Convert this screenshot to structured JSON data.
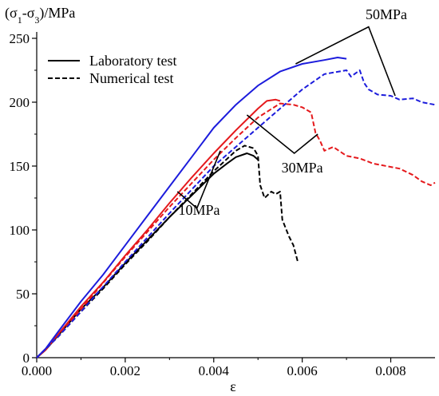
{
  "chart_data": {
    "type": "line",
    "xlabel": "ε",
    "ylabel": "(σ1-σ3)/MPa",
    "xlim": [
      0,
      0.009
    ],
    "ylim": [
      0,
      250
    ],
    "x_ticks": [
      "0.000",
      "0.002",
      "0.004",
      "0.006",
      "0.008"
    ],
    "y_ticks": [
      "0",
      "50",
      "100",
      "150",
      "200",
      "250"
    ],
    "legend": {
      "placement": "top-left",
      "entries": [
        {
          "label": "Laboratory test",
          "style": "solid"
        },
        {
          "label": "Numerical test",
          "style": "dashed"
        }
      ]
    },
    "annotations": [
      {
        "text": "50MPa",
        "x": 0.0079,
        "y": 265,
        "lines": [
          [
            0.00585,
            230
          ],
          [
            0.0075,
            259
          ],
          [
            0.0081,
            205
          ]
        ]
      },
      {
        "text": "30MPa",
        "x": 0.006,
        "y": 145,
        "lines": [
          [
            0.00475,
            190
          ],
          [
            0.00582,
            160
          ],
          [
            0.00635,
            175
          ]
        ]
      },
      {
        "text": "10MPa",
        "x": 0.00367,
        "y": 112,
        "lines": [
          [
            0.00318,
            130
          ],
          [
            0.00362,
            117
          ],
          [
            0.00415,
            162
          ]
        ]
      }
    ],
    "series": [
      {
        "color": "#000000",
        "style": "solid",
        "x": [
          0,
          0.0002,
          0.0005,
          0.001,
          0.0015,
          0.002,
          0.0025,
          0.003,
          0.0035,
          0.004,
          0.0043,
          0.0045,
          0.00475,
          0.0049,
          0.005
        ],
        "y": [
          0,
          6,
          18,
          38,
          55,
          74,
          92,
          110,
          127,
          144,
          152,
          157,
          160,
          158,
          155
        ]
      },
      {
        "color": "#000000",
        "style": "dashed",
        "x": [
          0,
          0.0005,
          0.001,
          0.0015,
          0.002,
          0.0025,
          0.003,
          0.0035,
          0.004,
          0.0045,
          0.0047,
          0.0049,
          0.005,
          0.00505,
          0.00515,
          0.0053,
          0.0054,
          0.0055,
          0.00555,
          0.0057,
          0.0058,
          0.0059
        ],
        "y": [
          0,
          17,
          36,
          54,
          73,
          91,
          110,
          128,
          146,
          162,
          166,
          164,
          158,
          135,
          125,
          130,
          128,
          130,
          108,
          95,
          88,
          75
        ]
      },
      {
        "color": "#e5191c",
        "style": "solid",
        "x": [
          0,
          0.0002,
          0.0005,
          0.001,
          0.0015,
          0.002,
          0.0025,
          0.003,
          0.0035,
          0.004,
          0.0045,
          0.005,
          0.0052,
          0.0054,
          0.0055
        ],
        "y": [
          0,
          6,
          19,
          40,
          59,
          80,
          100,
          121,
          141,
          160,
          178,
          195,
          201,
          202,
          201
        ]
      },
      {
        "color": "#e5191c",
        "style": "dashed",
        "x": [
          0,
          0.0005,
          0.001,
          0.002,
          0.003,
          0.004,
          0.0045,
          0.005,
          0.0055,
          0.0058,
          0.006,
          0.0062,
          0.0063,
          0.0064,
          0.0065,
          0.0067,
          0.007,
          0.0073,
          0.0076,
          0.0079,
          0.0082,
          0.0085,
          0.0087,
          0.0089,
          0.009
        ],
        "y": [
          0,
          17,
          38,
          79,
          118,
          155,
          172,
          188,
          199,
          198,
          196,
          192,
          176,
          170,
          162,
          165,
          158,
          156,
          152,
          150,
          148,
          143,
          138,
          135,
          137
        ]
      },
      {
        "color": "#1c1cdc",
        "style": "solid",
        "x": [
          0,
          0.0002,
          0.0005,
          0.001,
          0.0015,
          0.002,
          0.0025,
          0.003,
          0.0035,
          0.004,
          0.0045,
          0.005,
          0.0055,
          0.006,
          0.0065,
          0.0068,
          0.007
        ],
        "y": [
          0,
          7,
          21,
          44,
          65,
          88,
          111,
          134,
          157,
          180,
          198,
          213,
          224,
          230,
          233,
          235,
          234
        ]
      },
      {
        "color": "#1c1cdc",
        "style": "dashed",
        "x": [
          0,
          0.0005,
          0.001,
          0.002,
          0.003,
          0.004,
          0.005,
          0.0055,
          0.006,
          0.0065,
          0.007,
          0.0071,
          0.0073,
          0.0074,
          0.0075,
          0.0076,
          0.0077,
          0.008,
          0.0082,
          0.0085,
          0.0087,
          0.009
        ],
        "y": [
          0,
          17,
          36,
          75,
          113,
          150,
          180,
          195,
          210,
          222,
          225,
          220,
          225,
          215,
          210,
          208,
          206,
          205,
          202,
          203,
          200,
          198
        ]
      }
    ]
  }
}
